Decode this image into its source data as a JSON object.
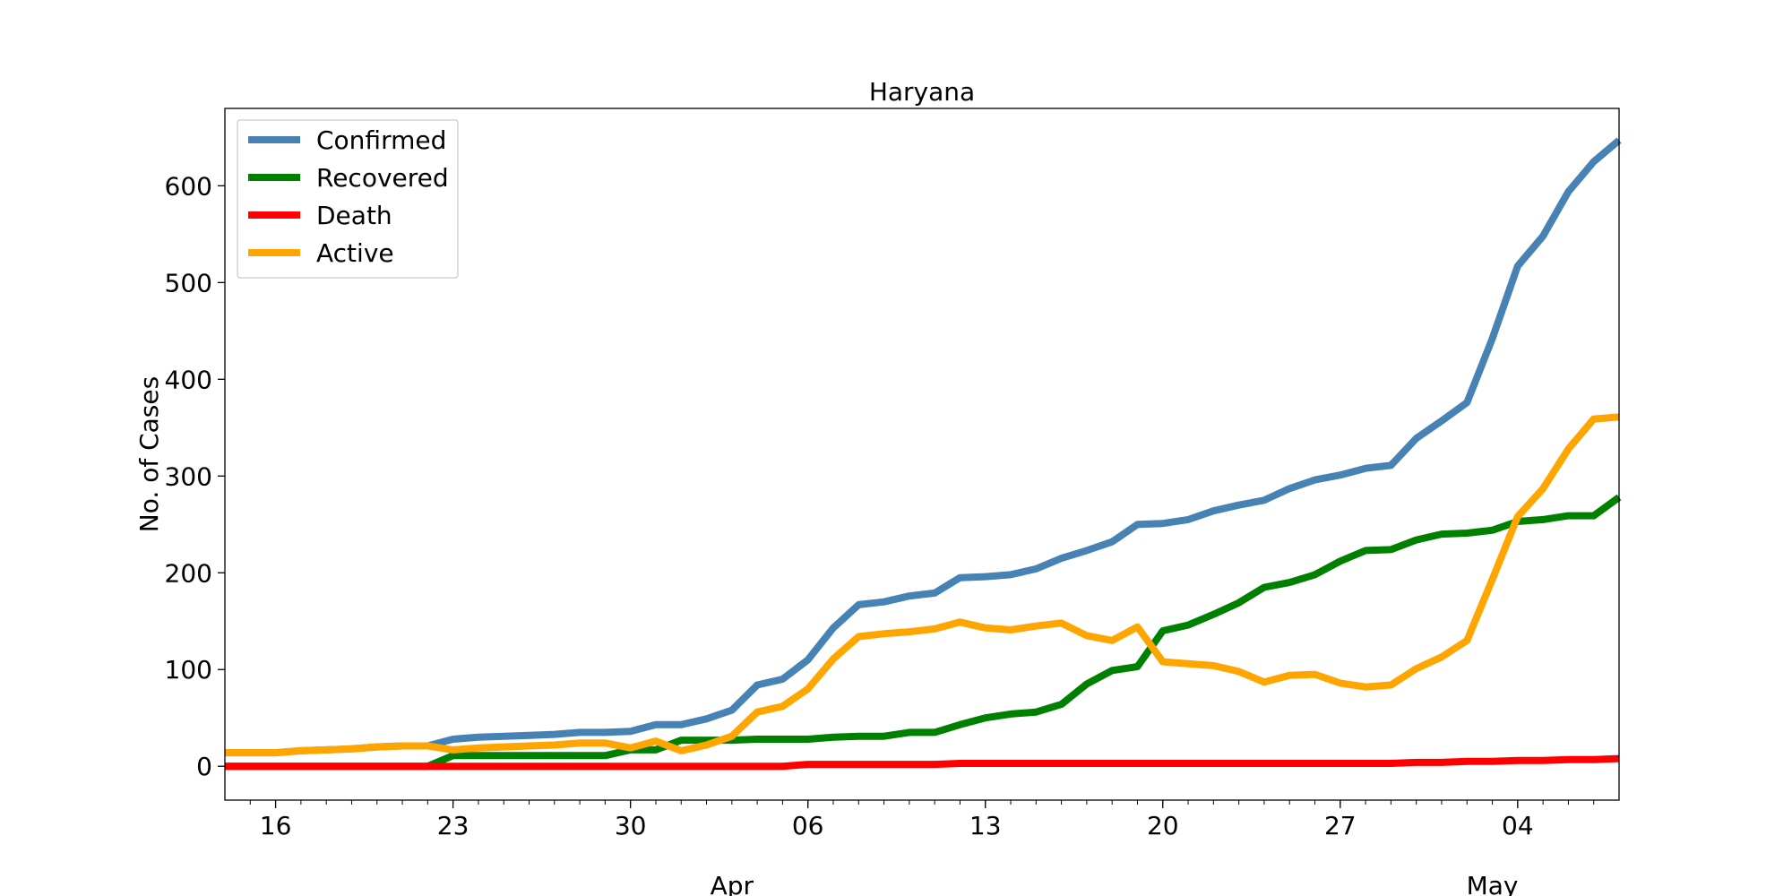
{
  "chart_data": {
    "type": "line",
    "title": "Haryana",
    "xlabel": "",
    "ylabel": "No. of Cases",
    "x_start": "2020-03-14",
    "x_end": "2020-05-08",
    "xlim": [
      "2020-03-14",
      "2020-05-08"
    ],
    "ylim": [
      -35,
      680
    ],
    "yticks": [
      0,
      100,
      200,
      300,
      400,
      500,
      600
    ],
    "xticks": [
      {
        "date": "2020-03-16",
        "label": "16"
      },
      {
        "date": "2020-03-23",
        "label": "23"
      },
      {
        "date": "2020-03-30",
        "label": "30"
      },
      {
        "date": "2020-04-06",
        "label": "06"
      },
      {
        "date": "2020-04-13",
        "label": "13"
      },
      {
        "date": "2020-04-20",
        "label": "20"
      },
      {
        "date": "2020-04-27",
        "label": "27"
      },
      {
        "date": "2020-05-04",
        "label": "04"
      }
    ],
    "month_labels": [
      {
        "date": "2020-04-03",
        "label": "Apr",
        "year": "2020"
      },
      {
        "date": "2020-05-03",
        "label": "May"
      }
    ],
    "grid": false,
    "legend_position": "upper-left",
    "series": [
      {
        "name": "Confirmed",
        "color": "#4682b4",
        "values": [
          14,
          14,
          14,
          16,
          17,
          18,
          20,
          21,
          21,
          28,
          30,
          31,
          32,
          33,
          35,
          35,
          36,
          43,
          43,
          49,
          58,
          84,
          90,
          110,
          143,
          167,
          170,
          176,
          179,
          195,
          196,
          198,
          204,
          215,
          223,
          232,
          250,
          251,
          255,
          264,
          270,
          275,
          287,
          296,
          301,
          308,
          311,
          339,
          357,
          376,
          442,
          517,
          548,
          594,
          625,
          647
        ]
      },
      {
        "name": "Recovered",
        "color": "#008000",
        "values": [
          0,
          0,
          0,
          0,
          0,
          0,
          0,
          0,
          0,
          11,
          11,
          11,
          11,
          11,
          11,
          11,
          17,
          17,
          27,
          27,
          27,
          28,
          28,
          28,
          30,
          31,
          31,
          35,
          35,
          43,
          50,
          54,
          56,
          64,
          85,
          99,
          103,
          140,
          146,
          157,
          169,
          185,
          190,
          198,
          212,
          223,
          224,
          234,
          240,
          241,
          244,
          253,
          255,
          259,
          259,
          278
        ]
      },
      {
        "name": "Death",
        "color": "#ff0000",
        "values": [
          0,
          0,
          0,
          0,
          0,
          0,
          0,
          0,
          0,
          0,
          0,
          0,
          0,
          0,
          0,
          0,
          0,
          0,
          0,
          0,
          0,
          0,
          0,
          2,
          2,
          2,
          2,
          2,
          2,
          3,
          3,
          3,
          3,
          3,
          3,
          3,
          3,
          3,
          3,
          3,
          3,
          3,
          3,
          3,
          3,
          3,
          3,
          4,
          4,
          5,
          5,
          6,
          6,
          7,
          7,
          8
        ]
      },
      {
        "name": "Active",
        "color": "#ffa500",
        "values": [
          14,
          14,
          14,
          16,
          17,
          18,
          20,
          21,
          21,
          17,
          19,
          20,
          21,
          22,
          24,
          24,
          19,
          26,
          16,
          22,
          31,
          56,
          62,
          80,
          111,
          134,
          137,
          139,
          142,
          149,
          143,
          141,
          145,
          148,
          135,
          130,
          144,
          108,
          106,
          104,
          98,
          87,
          94,
          95,
          86,
          82,
          84,
          101,
          113,
          130,
          193,
          258,
          287,
          328,
          359,
          361
        ]
      }
    ]
  }
}
